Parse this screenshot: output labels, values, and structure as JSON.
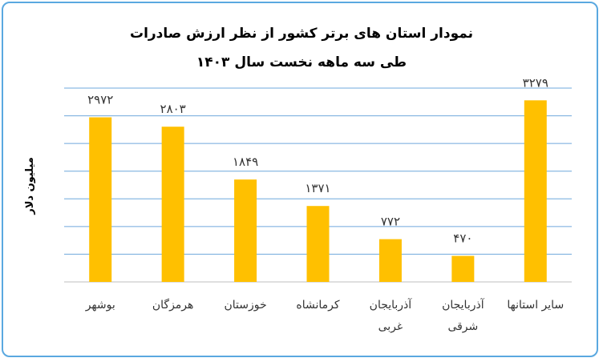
{
  "chart_data": {
    "type": "bar",
    "title": "نمودار استان های برتر کشور از نظر ارزش صادرات",
    "subtitle": "طی سه ماهه نخست سال ۱۴۰۳",
    "ylabel": "میلیون دلار",
    "xlabel": "",
    "categories": [
      [
        "بوشهر"
      ],
      [
        "هرمزگان"
      ],
      [
        "خوزستان"
      ],
      [
        "کرمانشاه"
      ],
      [
        "آذربایجان",
        "غربی"
      ],
      [
        "آذربایجان",
        "شرقی"
      ],
      [
        "سایر استانها"
      ]
    ],
    "values": [
      2972,
      2803,
      1849,
      1371,
      772,
      470,
      3279
    ],
    "value_labels": [
      "۲۹۷۲",
      "۲۸۰۳",
      "۱۸۴۹",
      "۱۳۷۱",
      "۷۷۲",
      "۴۷۰",
      "۳۲۷۹"
    ],
    "ylim": [
      0,
      3500
    ],
    "grid": true,
    "legend": "none",
    "bar_color": "#ffc000",
    "grid_color": "#6fa8dc"
  }
}
